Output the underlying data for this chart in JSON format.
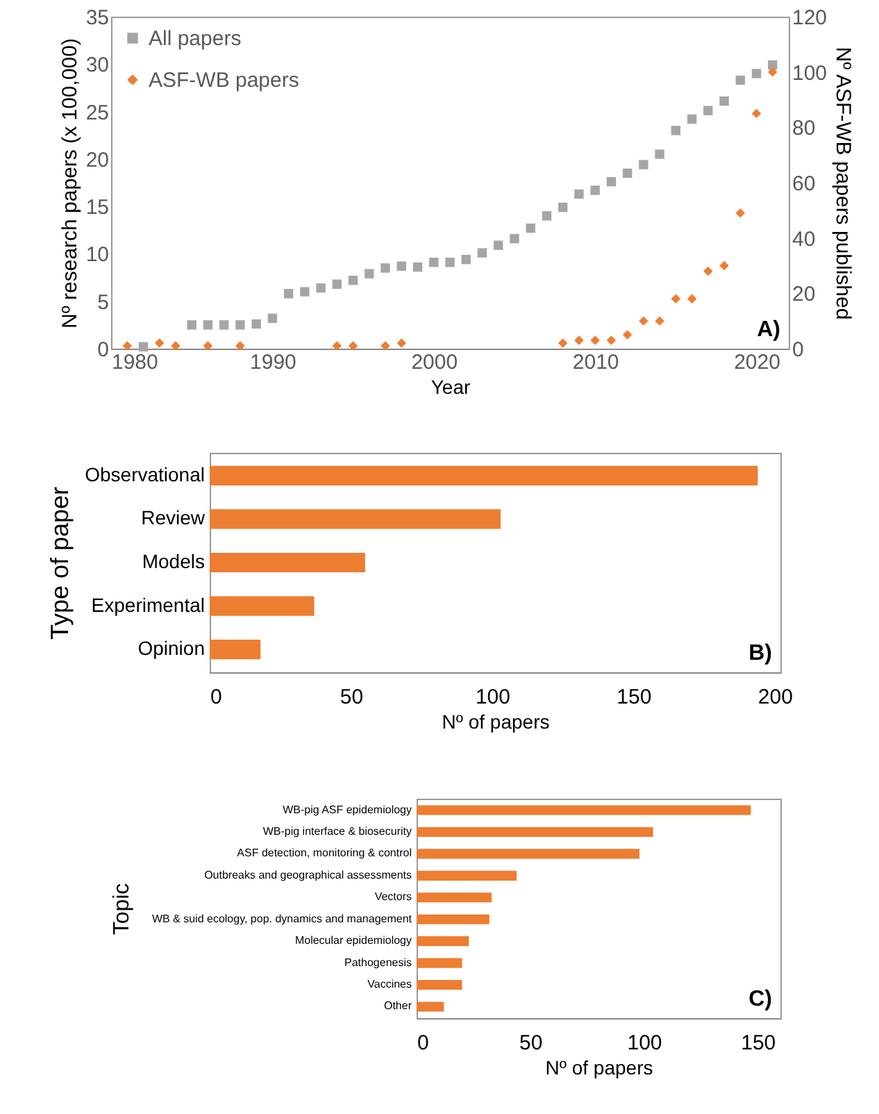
{
  "chart_data": [
    {
      "type": "scatter",
      "xlabel": "Year",
      "ylabel": "Nº research papers (x 100,000)",
      "y2label": "Nº ASF-WB papers published",
      "xlim": [
        1980,
        2022
      ],
      "xticks": [
        1980,
        1990,
        2000,
        2010,
        2020
      ],
      "ylim": [
        0,
        35
      ],
      "yticks": [
        0,
        5,
        10,
        15,
        20,
        25,
        30,
        35
      ],
      "y2lim": [
        0,
        120
      ],
      "y2ticks": [
        0,
        20,
        40,
        60,
        80,
        100,
        120
      ],
      "legend": "top left",
      "annotations": [
        "A)"
      ],
      "series": [
        {
          "name": "All papers",
          "color": "#a5a5a5",
          "marker": "square",
          "x": [
            1982,
            1985,
            1986,
            1987,
            1988,
            1989,
            1990,
            1991,
            1992,
            1993,
            1994,
            1995,
            1996,
            1997,
            1998,
            1999,
            2000,
            2001,
            2002,
            2003,
            2004,
            2005,
            2006,
            2007,
            2008,
            2009,
            2010,
            2011,
            2012,
            2013,
            2014,
            2015,
            2016,
            2017,
            2018,
            2019,
            2020,
            2021
          ],
          "values": [
            0.2,
            2.5,
            2.5,
            2.5,
            2.5,
            2.6,
            3.2,
            5.8,
            6.0,
            6.4,
            6.8,
            7.2,
            7.9,
            8.5,
            8.7,
            8.6,
            9.1,
            9.1,
            9.4,
            10.1,
            10.9,
            11.6,
            12.7,
            14.0,
            14.9,
            16.3,
            16.7,
            17.6,
            18.5,
            19.4,
            20.5,
            23.0,
            24.2,
            25.1,
            26.1,
            28.3,
            29.0,
            29.9
          ]
        },
        {
          "name": "ASF-WB papers",
          "color": "#ed7d31",
          "marker": "diamond",
          "axis": "y2",
          "x": [
            1981,
            1983,
            1984,
            1986,
            1988,
            1994,
            1995,
            1997,
            1998,
            2008,
            2009,
            2010,
            2011,
            2012,
            2013,
            2014,
            2015,
            2016,
            2017,
            2018,
            2019,
            2020,
            2021
          ],
          "values": [
            1,
            2,
            1,
            1,
            1,
            1,
            1,
            1,
            2,
            2,
            3,
            3,
            3,
            5,
            10,
            10,
            18,
            18,
            28,
            30,
            49,
            85,
            100
          ]
        }
      ]
    },
    {
      "type": "bar",
      "orientation": "horizontal",
      "xlabel": "Nº of papers",
      "ylabel": "Type of paper",
      "categories": [
        "Observational",
        "Review",
        "Models",
        "Experimental",
        "Opinion"
      ],
      "values": [
        194,
        103,
        55,
        37,
        18
      ],
      "color": "#ed7d31",
      "xlim": [
        0,
        202
      ],
      "xticks": [
        0,
        50,
        100,
        150,
        200
      ],
      "annotations": [
        "B)"
      ]
    },
    {
      "type": "bar",
      "orientation": "horizontal",
      "xlabel": "Nº of papers",
      "ylabel": "Topic",
      "categories": [
        "WB-pig ASF epidemiology",
        "WB-pig interface & biosecurity",
        "ASF detection, monitoring & control",
        "Outbreaks and geographical assessments",
        "Vectors",
        "WB & suid ecology, pop. dynamics and management",
        "Molecular epidemiology",
        "Pathogenesis",
        "Vaccines",
        "Other"
      ],
      "values": [
        147,
        104,
        98,
        44,
        33,
        32,
        23,
        20,
        20,
        12
      ],
      "color": "#ed7d31",
      "xlim": [
        0,
        160
      ],
      "xticks": [
        0,
        50,
        100,
        150
      ],
      "annotations": [
        "C)"
      ]
    }
  ]
}
